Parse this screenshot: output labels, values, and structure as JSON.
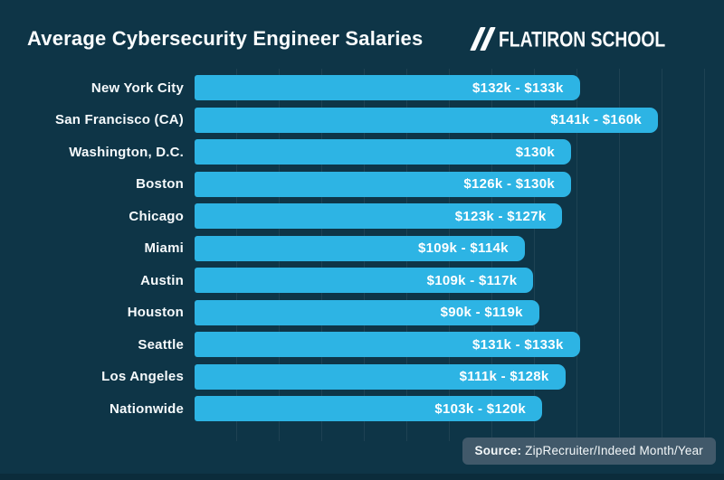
{
  "page": {
    "background_color": "#0e3547",
    "bar_color": "#2db4e4",
    "text_color": "#ffffff",
    "source_pill_color": "#41596a"
  },
  "header": {
    "title": "Average Cybersecurity Engineer Salaries",
    "logo_text": "FLATIRON SCHOOL"
  },
  "chart_data": {
    "type": "bar",
    "orientation": "horizontal",
    "title": "Average Cybersecurity Engineer Salaries",
    "unit": "USD thousands per year",
    "categories": [
      "New York City",
      "San Francisco (CA)",
      "Washington, D.C.",
      "Boston",
      "Chicago",
      "Miami",
      "Austin",
      "Houston",
      "Seattle",
      "Los Angeles",
      "Nationwide"
    ],
    "bar_labels": [
      "$132k - $133k",
      "$141k - $160k",
      "$130k",
      "$126k - $130k",
      "$123k - $127k",
      "$109k - $114k",
      "$109k - $117k",
      "$90k - $119k",
      "$131k - $133k",
      "$111k - $128k",
      "$103k - $120k"
    ],
    "series": [
      {
        "name": "salary_range_k",
        "ranges_k": [
          [
            132,
            133
          ],
          [
            141,
            160
          ],
          [
            130,
            130
          ],
          [
            126,
            130
          ],
          [
            123,
            127
          ],
          [
            109,
            114
          ],
          [
            109,
            117
          ],
          [
            90,
            119
          ],
          [
            131,
            133
          ],
          [
            111,
            128
          ],
          [
            103,
            120
          ]
        ]
      }
    ],
    "bar_length_metric": "upper_bound",
    "axis_range_k": [
      0,
      180
    ],
    "grid": true,
    "legend": false,
    "bar_color": "#2db4e4"
  },
  "footer": {
    "source_label": "Source:",
    "source_value": " ZipRecruiter/Indeed Month/Year"
  }
}
